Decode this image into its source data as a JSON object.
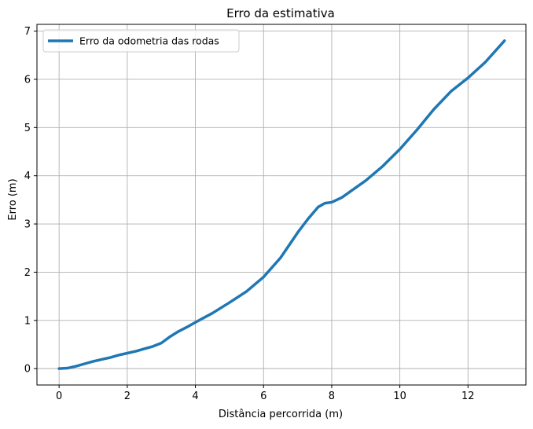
{
  "chart_data": {
    "type": "line",
    "title": "Erro da estimativa",
    "xlabel": "Distância percorrida (m)",
    "ylabel": "Erro (m)",
    "xlim": [
      -0.65,
      13.7
    ],
    "ylim": [
      -0.34,
      7.14
    ],
    "xticks": [
      0,
      2,
      4,
      6,
      8,
      10,
      12
    ],
    "yticks": [
      0,
      1,
      2,
      3,
      4,
      5,
      6,
      7
    ],
    "grid": true,
    "legend_position": "top-left",
    "series": [
      {
        "name": "Erro da odometria das rodas",
        "color": "#1f77b4",
        "points": [
          [
            0.0,
            0.0
          ],
          [
            0.25,
            0.01
          ],
          [
            0.5,
            0.05
          ],
          [
            0.75,
            0.1
          ],
          [
            1.0,
            0.15
          ],
          [
            1.25,
            0.19
          ],
          [
            1.5,
            0.23
          ],
          [
            1.75,
            0.28
          ],
          [
            2.0,
            0.32
          ],
          [
            2.25,
            0.36
          ],
          [
            2.5,
            0.41
          ],
          [
            2.75,
            0.46
          ],
          [
            3.0,
            0.53
          ],
          [
            3.25,
            0.66
          ],
          [
            3.5,
            0.77
          ],
          [
            3.75,
            0.86
          ],
          [
            4.0,
            0.96
          ],
          [
            4.5,
            1.15
          ],
          [
            5.0,
            1.37
          ],
          [
            5.5,
            1.6
          ],
          [
            6.0,
            1.9
          ],
          [
            6.5,
            2.3
          ],
          [
            7.0,
            2.82
          ],
          [
            7.3,
            3.1
          ],
          [
            7.6,
            3.35
          ],
          [
            7.8,
            3.43
          ],
          [
            8.0,
            3.45
          ],
          [
            8.3,
            3.55
          ],
          [
            8.6,
            3.7
          ],
          [
            9.0,
            3.9
          ],
          [
            9.5,
            4.2
          ],
          [
            10.0,
            4.55
          ],
          [
            10.5,
            4.95
          ],
          [
            11.0,
            5.38
          ],
          [
            11.5,
            5.75
          ],
          [
            12.0,
            6.03
          ],
          [
            12.5,
            6.35
          ],
          [
            13.07,
            6.8
          ]
        ]
      }
    ]
  }
}
